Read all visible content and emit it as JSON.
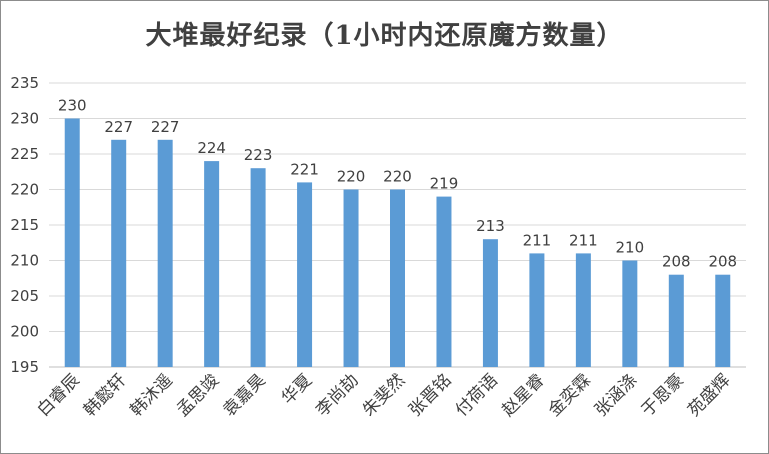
{
  "chart_data": {
    "type": "bar",
    "title": "大堆最好纪录（1小时内还原魔方数量）",
    "categories": [
      "白睿辰",
      "韩懿轩",
      "韩沐遥",
      "孟思竣",
      "袁嘉昊",
      "华夏",
      "李尚劼",
      "朱斐然",
      "张晋铭",
      "付荷语",
      "赵星睿",
      "金奕霖",
      "张涵涤",
      "于恩豪",
      "苑盛辉"
    ],
    "values": [
      230,
      227,
      227,
      224,
      223,
      221,
      220,
      220,
      219,
      213,
      211,
      211,
      210,
      208,
      208
    ],
    "ylim": [
      195,
      235
    ],
    "yticks": [
      195,
      200,
      205,
      210,
      215,
      220,
      225,
      230,
      235
    ],
    "grid": true,
    "data_labels": true,
    "legend": "none",
    "bar_color": "#5b9bd5",
    "grid_color": "#d9d9d9",
    "text_color": "#404040"
  }
}
